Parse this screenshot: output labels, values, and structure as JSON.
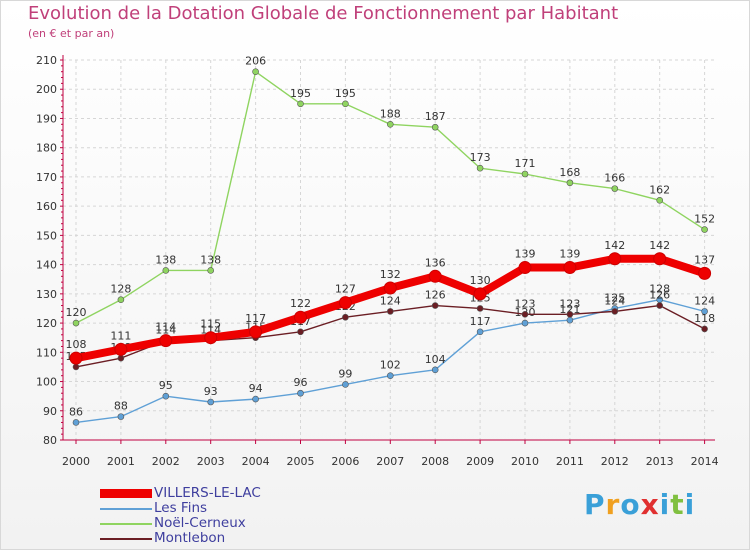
{
  "chart_data": {
    "type": "line",
    "title": "Evolution de la Dotation Globale de Fonctionnement par Habitant",
    "subtitle": "(en € et par an)",
    "xlabel": "",
    "ylabel": "",
    "ylim": [
      80,
      210
    ],
    "yticks": [
      80,
      90,
      100,
      110,
      120,
      130,
      140,
      150,
      160,
      170,
      180,
      190,
      200,
      210
    ],
    "x": [
      "2000",
      "2001",
      "2002",
      "2003",
      "2004",
      "2005",
      "2006",
      "2007",
      "2008",
      "2009",
      "2010",
      "2011",
      "2012",
      "2013",
      "2014"
    ],
    "series": [
      {
        "name": "Noël-Cerneux",
        "color": "#8fd460",
        "values": [
          120,
          128,
          138,
          138,
          206,
          195,
          195,
          188,
          187,
          173,
          171,
          168,
          166,
          162,
          152
        ]
      },
      {
        "name": "Les Fins",
        "color": "#5fa0d6",
        "values": [
          86,
          88,
          95,
          93,
          94,
          96,
          99,
          102,
          104,
          117,
          120,
          121,
          125,
          128,
          124
        ]
      },
      {
        "name": "Montlebon",
        "color": "#6b1e24",
        "values": [
          105,
          108,
          114,
          114,
          115,
          117,
          122,
          124,
          126,
          125,
          123,
          123,
          124,
          126,
          118
        ]
      },
      {
        "name": "VILLERS-LE-LAC",
        "color": "#ee0000",
        "values": [
          108,
          111,
          114,
          115,
          117,
          122,
          127,
          132,
          136,
          130,
          139,
          139,
          142,
          142,
          137
        ]
      }
    ]
  },
  "legend": [
    {
      "label": "VILLERS-LE-LAC",
      "color": "#ee0000"
    },
    {
      "label": "Les Fins",
      "color": "#5fa0d6"
    },
    {
      "label": "Noël-Cerneux",
      "color": "#8fd460"
    },
    {
      "label": "Montlebon",
      "color": "#6b1e24"
    }
  ],
  "logo": {
    "letters": [
      "P",
      "r",
      "o",
      "x",
      "i",
      "t",
      "i"
    ],
    "colors": [
      "#3aa0d8",
      "#f0a020",
      "#3aa0d8",
      "#e03030",
      "#3aa0d8",
      "#80c040",
      "#3aa0d8"
    ]
  }
}
